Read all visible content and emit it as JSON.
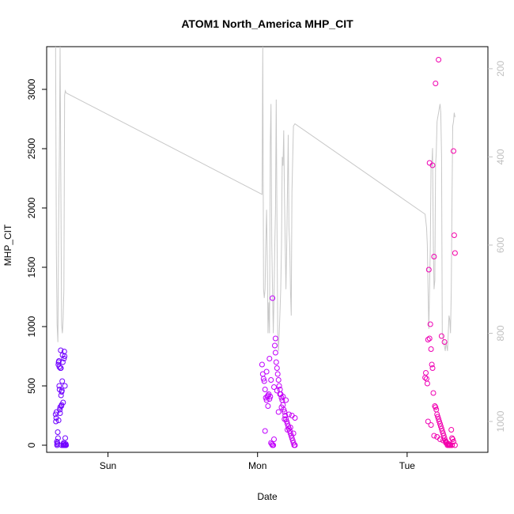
{
  "chart_data": {
    "type": "scatter",
    "title": "ATOM1 North_America MHP_CIT",
    "xlabel": "Date",
    "ylabel": "MHP_CIT",
    "x_ticks": [
      "Sun",
      "Mon",
      "Tue"
    ],
    "x_tick_positions": [
      0.5,
      1.5,
      2.5
    ],
    "xlim": [
      0.09,
      3.04
    ],
    "ylim": [
      -60,
      3360
    ],
    "y_ticks": [
      0,
      500,
      1000,
      1500,
      2000,
      2500,
      3000
    ],
    "y2lim": [
      1070,
      150
    ],
    "y2_ticks": [
      200,
      400,
      600,
      800,
      1000
    ],
    "grid": false,
    "colors": {
      "line": "#c8c8c8",
      "points_start": "#6a00ff",
      "points_mid": "#c000ff",
      "points_end": "#ff0099",
      "axis": "#000000",
      "right_axis": "#c0c0c0"
    },
    "series": [
      {
        "type": "line",
        "axis": "right",
        "x": [
          0.15,
          0.155,
          0.16,
          0.165,
          0.17,
          0.175,
          0.18,
          0.185,
          0.19,
          0.195,
          0.2,
          0.205,
          0.21,
          0.215,
          0.22,
          1.53,
          1.535,
          1.54,
          1.545,
          1.55,
          1.555,
          1.56,
          1.565,
          1.57,
          1.575,
          1.58,
          1.585,
          1.59,
          1.595,
          1.6,
          1.605,
          1.61,
          1.615,
          1.62,
          1.625,
          1.63,
          1.635,
          1.64,
          1.645,
          1.65,
          1.655,
          1.66,
          1.665,
          1.67,
          1.675,
          1.68,
          1.685,
          1.69,
          1.695,
          1.7,
          1.705,
          1.71,
          1.715,
          1.72,
          1.725,
          1.73,
          1.735,
          1.74,
          1.75,
          2.62,
          2.625,
          2.63,
          2.635,
          2.64,
          2.645,
          2.65,
          2.655,
          2.66,
          2.665,
          2.67,
          2.675,
          2.68,
          2.685,
          2.69,
          2.695,
          2.7,
          2.705,
          2.71,
          2.715,
          2.72,
          2.725,
          2.73,
          2.735,
          2.74,
          2.745,
          2.75,
          2.755,
          2.76,
          2.765,
          2.77,
          2.775,
          2.78,
          2.785,
          2.79,
          2.795,
          2.8,
          2.805,
          2.81,
          2.815,
          2.82
        ],
        "y": [
          150,
          620,
          780,
          820,
          560,
          390,
          150,
          480,
          780,
          800,
          770,
          700,
          260,
          250,
          255,
          485,
          150,
          700,
          720,
          700,
          600,
          520,
          630,
          800,
          730,
          800,
          370,
          280,
          600,
          700,
          800,
          720,
          600,
          520,
          270,
          560,
          800,
          840,
          800,
          750,
          700,
          600,
          400,
          420,
          340,
          500,
          600,
          700,
          600,
          480,
          350,
          560,
          600,
          700,
          760,
          480,
          400,
          330,
          325,
          530,
          545,
          560,
          600,
          700,
          790,
          700,
          600,
          420,
          420,
          380,
          600,
          700,
          680,
          420,
          390,
          320,
          310,
          300,
          290,
          280,
          300,
          400,
          800,
          810,
          820,
          830,
          840,
          820,
          830,
          840,
          800,
          760,
          770,
          800,
          700,
          500,
          330,
          320,
          300,
          310
        ]
      },
      {
        "type": "scatter",
        "axis": "left",
        "x": [
          0.15,
          0.152,
          0.154,
          0.156,
          0.158,
          0.16,
          0.162,
          0.164,
          0.166,
          0.168,
          0.17,
          0.172,
          0.174,
          0.176,
          0.178,
          0.18,
          0.182,
          0.184,
          0.186,
          0.188,
          0.19,
          0.192,
          0.194,
          0.196,
          0.198,
          0.2,
          0.202,
          0.204,
          0.206,
          0.208,
          0.21,
          0.212,
          0.214,
          0.216,
          0.218,
          0.22,
          0.17,
          0.18,
          0.19,
          0.2,
          0.21,
          0.16,
          0.19,
          0.205,
          0.185,
          0.175,
          1.53,
          1.535,
          1.54,
          1.545,
          1.55,
          1.555,
          1.56,
          1.565,
          1.57,
          1.575,
          1.58,
          1.585,
          1.59,
          1.595,
          1.6,
          1.605,
          1.61,
          1.615,
          1.62,
          1.625,
          1.63,
          1.635,
          1.64,
          1.645,
          1.65,
          1.655,
          1.66,
          1.665,
          1.67,
          1.675,
          1.68,
          1.685,
          1.69,
          1.695,
          1.7,
          1.705,
          1.71,
          1.715,
          1.72,
          1.725,
          1.73,
          1.735,
          1.74,
          1.745,
          1.75,
          1.56,
          1.58,
          1.6,
          1.62,
          1.64,
          1.66,
          1.68,
          1.7,
          1.72,
          1.74,
          1.55,
          1.57,
          1.59,
          1.61,
          1.63,
          1.65,
          1.67,
          1.69,
          1.71,
          1.73,
          1.75,
          2.62,
          2.625,
          2.63,
          2.635,
          2.64,
          2.645,
          2.65,
          2.655,
          2.66,
          2.665,
          2.67,
          2.675,
          2.68,
          2.685,
          2.69,
          2.695,
          2.7,
          2.705,
          2.71,
          2.715,
          2.72,
          2.725,
          2.73,
          2.735,
          2.74,
          2.745,
          2.75,
          2.755,
          2.76,
          2.765,
          2.77,
          2.775,
          2.78,
          2.785,
          2.79,
          2.795,
          2.8,
          2.805,
          2.81,
          2.815,
          2.82,
          2.64,
          2.66,
          2.68,
          2.7,
          2.72,
          2.74,
          2.76,
          2.78,
          2.8,
          2.82,
          2.65,
          2.67,
          2.69,
          2.71,
          2.73,
          2.75,
          2.77,
          2.79,
          2.81
        ],
        "y": [
          260,
          200,
          230,
          280,
          30,
          10,
          20,
          110,
          60,
          680,
          700,
          710,
          500,
          470,
          300,
          320,
          650,
          800,
          420,
          330,
          340,
          460,
          540,
          760,
          700,
          0,
          10,
          20,
          730,
          790,
          750,
          500,
          60,
          0,
          10,
          0,
          210,
          270,
          450,
          360,
          0,
          0,
          0,
          0,
          650,
          660,
          680,
          600,
          560,
          540,
          470,
          400,
          380,
          410,
          420,
          430,
          390,
          410,
          20,
          10,
          0,
          0,
          50,
          840,
          780,
          700,
          650,
          600,
          550,
          500,
          470,
          430,
          400,
          380,
          340,
          300,
          280,
          250,
          220,
          200,
          180,
          160,
          140,
          120,
          100,
          80,
          60,
          40,
          20,
          0,
          0,
          620,
          730,
          1240,
          900,
          280,
          320,
          220,
          130,
          150,
          100,
          120,
          330,
          550,
          490,
          460,
          430,
          410,
          380,
          260,
          250,
          230,
          570,
          610,
          560,
          520,
          890,
          1480,
          900,
          1020,
          810,
          680,
          650,
          440,
          1590,
          330,
          320,
          300,
          260,
          240,
          220,
          200,
          180,
          160,
          140,
          120,
          100,
          80,
          60,
          40,
          30,
          20,
          10,
          5,
          0,
          0,
          0,
          130,
          60,
          50,
          2480,
          1770,
          1620,
          200,
          170,
          80,
          70,
          50,
          40,
          20,
          10,
          0,
          0,
          2380,
          2360,
          3050,
          3250,
          920,
          870,
          0,
          0,
          30
        ]
      }
    ]
  }
}
